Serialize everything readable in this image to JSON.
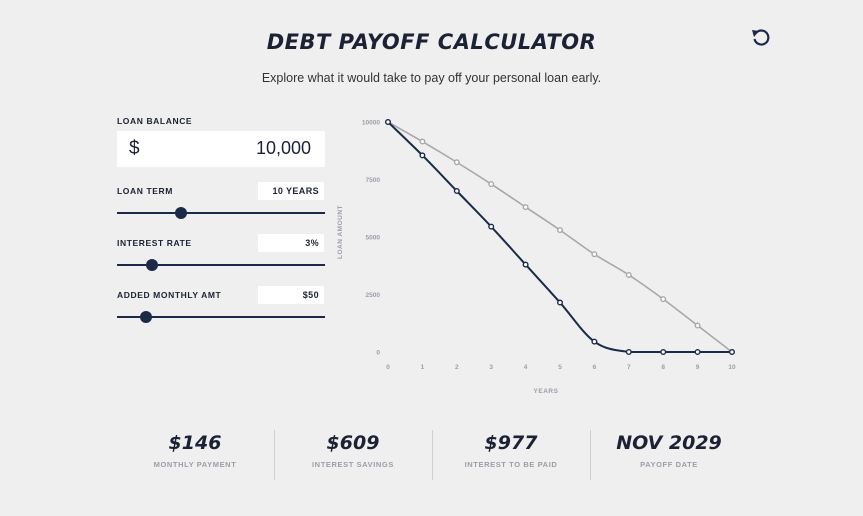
{
  "header": {
    "title": "DEBT PAYOFF CALCULATOR",
    "subtitle": "Explore what it would take to pay off your personal loan early."
  },
  "icons": {
    "reset": "reset-icon"
  },
  "form": {
    "loan_balance": {
      "label": "LOAN BALANCE",
      "currency": "$",
      "value": "10,000"
    },
    "loan_term": {
      "label": "LOAN TERM",
      "value": "10 YEARS",
      "level": 0.31
    },
    "interest_rate": {
      "label": "INTEREST RATE",
      "value": "3%",
      "level": 0.17
    },
    "added_monthly": {
      "label": "ADDED MONTHLY AMT",
      "value": "$50",
      "level": 0.14
    }
  },
  "chart_data": {
    "type": "line",
    "xlabel": "YEARS",
    "ylabel": "LOAN AMOUNT",
    "x": [
      0,
      1,
      2,
      3,
      4,
      5,
      6,
      7,
      8,
      9,
      10
    ],
    "xlim": [
      0,
      10
    ],
    "ylim": [
      0,
      10000
    ],
    "yticks": [
      "10000",
      "7500",
      "5000",
      "2500",
      "0"
    ],
    "xticks": [
      "0",
      "1",
      "2",
      "3",
      "4",
      "5",
      "6",
      "7",
      "8",
      "9",
      "10"
    ],
    "grid": false,
    "series": [
      {
        "color": "#a8a8a8",
        "values": [
          10000,
          9150,
          8250,
          7300,
          6300,
          5300,
          4250,
          3350,
          2300,
          1150,
          0
        ]
      },
      {
        "color": "#1c2a4a",
        "values": [
          10000,
          8550,
          7000,
          5450,
          3800,
          2150,
          450,
          0,
          0,
          0,
          0
        ]
      }
    ]
  },
  "stats": [
    {
      "value": "$146",
      "label": "MONTHLY PAYMENT"
    },
    {
      "value": "$609",
      "label": "INTEREST SAVINGS"
    },
    {
      "value": "$977",
      "label": "INTEREST TO BE PAID"
    },
    {
      "value": "NOV 2029",
      "label": "PAYOFF DATE"
    }
  ]
}
